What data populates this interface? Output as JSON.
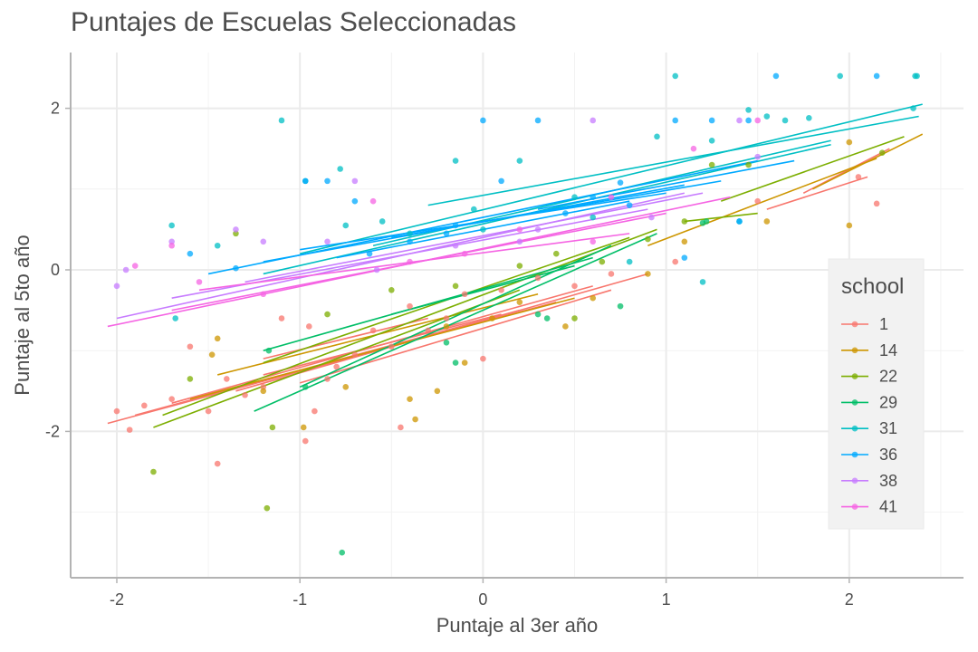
{
  "chart_data": {
    "type": "scatter",
    "title": "Puntajes de Escuelas Seleccionadas",
    "xlabel": "Puntaje al 3er año",
    "ylabel": "Puntaje al 5to año",
    "xlim": [
      -2.3,
      2.6
    ],
    "ylim": [
      -3.8,
      2.7
    ],
    "xticks": [
      -2,
      -1,
      0,
      1,
      2
    ],
    "yticks": [
      -2,
      0,
      2
    ],
    "grid": true,
    "legend": {
      "title": "school",
      "position": "right"
    },
    "series": [
      {
        "name": "1",
        "color": "#F8766D",
        "points": [
          [
            -2,
            -1.75
          ],
          [
            -1.93,
            -1.98
          ],
          [
            -1.85,
            -1.68
          ],
          [
            -1.7,
            -1.6
          ],
          [
            -1.6,
            -0.95
          ],
          [
            -1.5,
            -1.75
          ],
          [
            -1.4,
            -1.35
          ],
          [
            -1.3,
            -1.55
          ],
          [
            -1.2,
            -1.45
          ],
          [
            -1.1,
            -0.6
          ],
          [
            -0.95,
            -0.7
          ],
          [
            -0.92,
            -1.75
          ],
          [
            -0.85,
            -1.35
          ],
          [
            -0.8,
            -1.2
          ],
          [
            -0.7,
            -1.05
          ],
          [
            -0.6,
            -0.75
          ],
          [
            -0.5,
            -0.95
          ],
          [
            -0.45,
            -1.95
          ],
          [
            -0.4,
            -0.45
          ],
          [
            -0.3,
            -0.75
          ],
          [
            -0.2,
            -0.6
          ],
          [
            -0.1,
            -0.3
          ],
          [
            0.0,
            -1.1
          ],
          [
            0.1,
            -0.25
          ],
          [
            0.3,
            -0.1
          ],
          [
            0.5,
            -0.2
          ],
          [
            0.7,
            -0.05
          ],
          [
            1.05,
            0.1
          ],
          [
            1.5,
            0.85
          ],
          [
            2.05,
            1.15
          ],
          [
            2.15,
            0.82
          ],
          [
            -1.45,
            -2.4
          ],
          [
            -0.97,
            -2.12
          ]
        ],
        "lines": [
          [
            [
              -2.05,
              -1.9
            ],
            [
              -0.5,
              -0.95
            ]
          ],
          [
            [
              -1.9,
              -1.8
            ],
            [
              0.2,
              -0.5
            ]
          ],
          [
            [
              -1.7,
              -1.65
            ],
            [
              0.6,
              -0.2
            ]
          ],
          [
            [
              -1.5,
              -1.55
            ],
            [
              0.4,
              -0.4
            ]
          ],
          [
            [
              -1.35,
              -1.5
            ],
            [
              0.9,
              -0.05
            ]
          ],
          [
            [
              -1.2,
              -1.3
            ],
            [
              0.1,
              -0.55
            ]
          ],
          [
            [
              -1.0,
              -1.4
            ],
            [
              0.7,
              -0.25
            ]
          ],
          [
            [
              1.55,
              0.75
            ],
            [
              2.1,
              1.15
            ]
          ],
          [
            [
              1.75,
              0.95
            ],
            [
              2.22,
              1.5
            ]
          ],
          [
            [
              -1.2,
              -1.1
            ],
            [
              -0.3,
              -0.6
            ]
          ]
        ]
      },
      {
        "name": "14",
        "color": "#CD9600",
        "points": [
          [
            -1.48,
            -1.05
          ],
          [
            -1.45,
            -0.85
          ],
          [
            -1.2,
            -1.5
          ],
          [
            -0.98,
            -1.95
          ],
          [
            -0.75,
            -1.45
          ],
          [
            -0.4,
            -1.6
          ],
          [
            -0.37,
            -1.85
          ],
          [
            -0.2,
            -0.7
          ],
          [
            -0.25,
            -1.5
          ],
          [
            0.05,
            -0.6
          ],
          [
            0.2,
            -0.4
          ],
          [
            0.45,
            -0.7
          ],
          [
            0.6,
            -0.35
          ],
          [
            0.9,
            -0.05
          ],
          [
            1.1,
            0.35
          ],
          [
            1.55,
            0.6
          ],
          [
            2.0,
            1.58
          ],
          [
            2.0,
            0.55
          ],
          [
            -0.1,
            -1.15
          ]
        ],
        "lines": [
          [
            [
              -1.6,
              -1.6
            ],
            [
              0.5,
              -0.35
            ]
          ],
          [
            [
              -1.45,
              -1.3
            ],
            [
              0.3,
              -0.3
            ]
          ],
          [
            [
              0.9,
              0.3
            ],
            [
              2.15,
              1.38
            ]
          ],
          [
            [
              1.8,
              1.0
            ],
            [
              2.4,
              1.68
            ]
          ]
        ]
      },
      {
        "name": "22",
        "color": "#7CAE00",
        "points": [
          [
            -1.8,
            -2.5
          ],
          [
            -1.6,
            -1.35
          ],
          [
            -1.35,
            0.45
          ],
          [
            -1.15,
            -1.95
          ],
          [
            -1.18,
            -2.95
          ],
          [
            -0.85,
            -0.55
          ],
          [
            -0.5,
            -0.25
          ],
          [
            -0.15,
            -0.2
          ],
          [
            0.2,
            0.05
          ],
          [
            0.4,
            0.2
          ],
          [
            0.5,
            -0.6
          ],
          [
            0.65,
            0.1
          ],
          [
            0.9,
            0.38
          ],
          [
            1.1,
            0.6
          ],
          [
            1.25,
            1.3
          ],
          [
            1.45,
            1.3
          ],
          [
            2.18,
            1.45
          ]
        ],
        "lines": [
          [
            [
              -1.8,
              -1.95
            ],
            [
              0.2,
              -0.25
            ]
          ],
          [
            [
              -1.75,
              -1.8
            ],
            [
              0.95,
              0.5
            ]
          ],
          [
            [
              -1.2,
              -1.15
            ],
            [
              0.8,
              0.4
            ]
          ],
          [
            [
              1.1,
              0.6
            ],
            [
              1.5,
              0.7
            ]
          ],
          [
            [
              1.3,
              0.85
            ],
            [
              2.3,
              1.65
            ]
          ]
        ]
      },
      {
        "name": "29",
        "color": "#00BE67",
        "points": [
          [
            -1.17,
            -1.0
          ],
          [
            -0.97,
            -1.45
          ],
          [
            -0.77,
            -3.5
          ],
          [
            -0.2,
            -0.9
          ],
          [
            -0.15,
            -1.15
          ],
          [
            0.3,
            -0.55
          ],
          [
            0.35,
            -0.6
          ],
          [
            0.75,
            -0.45
          ],
          [
            1.2,
            0.58
          ],
          [
            1.22,
            0.6
          ]
        ],
        "lines": [
          [
            [
              -1.25,
              -1.75
            ],
            [
              0.95,
              0.45
            ]
          ],
          [
            [
              -1.2,
              -1.0
            ],
            [
              0.6,
              0.15
            ]
          ],
          [
            [
              -1.0,
              -1.45
            ],
            [
              0.7,
              0.3
            ]
          ],
          [
            [
              -0.5,
              -0.55
            ],
            [
              0.5,
              0.05
            ]
          ]
        ]
      },
      {
        "name": "31",
        "color": "#00BFC4",
        "points": [
          [
            -1.7,
            0.55
          ],
          [
            -1.68,
            -0.6
          ],
          [
            -1.45,
            0.3
          ],
          [
            -1.1,
            1.85
          ],
          [
            -0.97,
            1.1
          ],
          [
            -0.78,
            1.25
          ],
          [
            -0.75,
            0.55
          ],
          [
            -0.55,
            0.6
          ],
          [
            -0.4,
            0.45
          ],
          [
            -0.15,
            1.35
          ],
          [
            0.0,
            0.5
          ],
          [
            0.2,
            1.35
          ],
          [
            0.6,
            0.65
          ],
          [
            0.8,
            0.1
          ],
          [
            0.95,
            1.65
          ],
          [
            1.05,
            2.4
          ],
          [
            1.2,
            -0.15
          ],
          [
            1.25,
            1.6
          ],
          [
            1.4,
            0.6
          ],
          [
            1.45,
            1.98
          ],
          [
            1.55,
            1.9
          ],
          [
            1.65,
            1.85
          ],
          [
            1.78,
            1.88
          ],
          [
            1.95,
            2.4
          ],
          [
            2.35,
            2.0
          ],
          [
            2.36,
            2.4
          ],
          [
            2.37,
            2.4
          ],
          [
            0.5,
            0.9
          ],
          [
            -0.05,
            0.75
          ]
        ],
        "lines": [
          [
            [
              -1.0,
              0.2
            ],
            [
              2.4,
              2.05
            ]
          ],
          [
            [
              -1.2,
              -0.05
            ],
            [
              1.9,
              1.55
            ]
          ],
          [
            [
              -0.3,
              0.8
            ],
            [
              2.38,
              1.9
            ]
          ],
          [
            [
              -0.6,
              0.3
            ],
            [
              1.9,
              1.6
            ]
          ]
        ]
      },
      {
        "name": "36",
        "color": "#00A9FF",
        "points": [
          [
            -1.6,
            0.2
          ],
          [
            -1.35,
            0.02
          ],
          [
            -0.97,
            1.1
          ],
          [
            -0.85,
            1.1
          ],
          [
            -0.7,
            0.85
          ],
          [
            -0.62,
            0.2
          ],
          [
            -0.4,
            0.35
          ],
          [
            -0.2,
            0.45
          ],
          [
            0.0,
            1.85
          ],
          [
            0.1,
            1.1
          ],
          [
            0.3,
            1.85
          ],
          [
            0.6,
            0.9
          ],
          [
            0.75,
            1.08
          ],
          [
            0.8,
            0.8
          ],
          [
            1.05,
            1.85
          ],
          [
            1.1,
            0.15
          ],
          [
            1.25,
            1.85
          ],
          [
            1.4,
            0.6
          ],
          [
            1.45,
            1.85
          ],
          [
            1.6,
            2.4
          ],
          [
            2.15,
            2.4
          ],
          [
            -0.15,
            0.55
          ],
          [
            0.45,
            0.7
          ]
        ],
        "lines": [
          [
            [
              -1.5,
              -0.05
            ],
            [
              1.5,
              1.35
            ]
          ],
          [
            [
              -1.2,
              0.1
            ],
            [
              1.1,
              1.05
            ]
          ],
          [
            [
              -1.0,
              0.25
            ],
            [
              1.0,
              0.95
            ]
          ],
          [
            [
              -0.8,
              0.15
            ],
            [
              0.8,
              0.85
            ]
          ],
          [
            [
              -0.5,
              0.4
            ],
            [
              1.3,
              1.1
            ]
          ],
          [
            [
              0.3,
              0.75
            ],
            [
              1.7,
              1.35
            ]
          ]
        ]
      },
      {
        "name": "38",
        "color": "#C77CFF",
        "points": [
          [
            -2.0,
            -0.2
          ],
          [
            -1.95,
            0.0
          ],
          [
            -1.7,
            0.35
          ],
          [
            -1.35,
            0.5
          ],
          [
            -1.2,
            0.35
          ],
          [
            -0.85,
            0.35
          ],
          [
            -0.7,
            1.1
          ],
          [
            -0.58,
            0.0
          ],
          [
            -0.15,
            0.3
          ],
          [
            0.2,
            0.35
          ],
          [
            0.3,
            0.5
          ],
          [
            0.6,
            1.85
          ],
          [
            0.92,
            0.65
          ],
          [
            1.4,
            1.85
          ],
          [
            1.5,
            1.4
          ]
        ],
        "lines": [
          [
            [
              -2.0,
              -0.6
            ],
            [
              1.1,
              0.95
            ]
          ],
          [
            [
              -1.7,
              -0.35
            ],
            [
              0.9,
              0.75
            ]
          ],
          [
            [
              -1.3,
              -0.15
            ],
            [
              1.2,
              0.95
            ]
          ]
        ]
      },
      {
        "name": "41",
        "color": "#F564E3",
        "points": [
          [
            -1.9,
            0.05
          ],
          [
            -1.7,
            0.3
          ],
          [
            -1.55,
            -0.15
          ],
          [
            -1.2,
            -0.3
          ],
          [
            -0.6,
            0.85
          ],
          [
            -0.4,
            0.1
          ],
          [
            -0.1,
            0.2
          ],
          [
            0.2,
            0.5
          ],
          [
            0.6,
            0.35
          ],
          [
            0.7,
            0.9
          ],
          [
            1.15,
            1.5
          ],
          [
            1.5,
            1.85
          ]
        ],
        "lines": [
          [
            [
              -2.05,
              -0.7
            ],
            [
              1.35,
              0.9
            ]
          ],
          [
            [
              -1.7,
              -0.5
            ],
            [
              1.0,
              0.7
            ]
          ],
          [
            [
              -1.55,
              -0.25
            ],
            [
              0.8,
              0.45
            ]
          ]
        ]
      }
    ]
  }
}
